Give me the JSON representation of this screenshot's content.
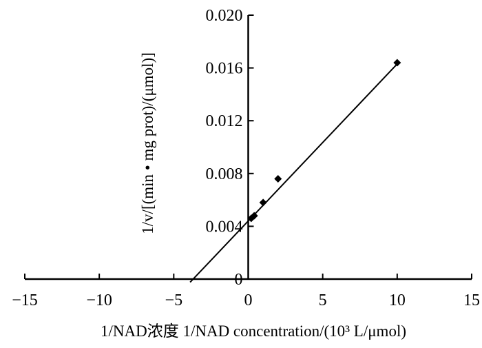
{
  "chart_data": {
    "type": "scatter",
    "title": "",
    "xlabel": "1/NAD浓度 1/NAD concentration/(10³ L/μmol)",
    "ylabel": "1/v/[(min • mg prot)/(μmol)]",
    "xlim": [
      -15,
      15
    ],
    "ylim": [
      0,
      0.02
    ],
    "x_ticks": [
      -15,
      -10,
      -5,
      0,
      5,
      10,
      15
    ],
    "x_tick_labels": [
      "−15",
      "−10",
      "−5",
      "0",
      "5",
      "10",
      "15"
    ],
    "y_ticks": [
      0,
      0.004,
      0.008,
      0.012,
      0.016,
      0.02
    ],
    "y_tick_labels": [
      "0",
      "0.004",
      "0.008",
      "0.012",
      "0.016",
      "0.020"
    ],
    "grid": false,
    "legend": "none",
    "series": [
      {
        "marker": "diamond",
        "x": [
          0.2,
          0.4,
          1.0,
          2.0,
          10.0
        ],
        "y": [
          0.0046,
          0.0048,
          0.0058,
          0.0076,
          0.0164
        ]
      }
    ],
    "trendline": {
      "type": "linear",
      "x_start": -3.9,
      "x_end": 10.0,
      "slope": 0.00119,
      "intercept": 0.0044
    },
    "colors": {
      "marks": "#000000",
      "axes": "#000000",
      "background": "#ffffff"
    }
  }
}
